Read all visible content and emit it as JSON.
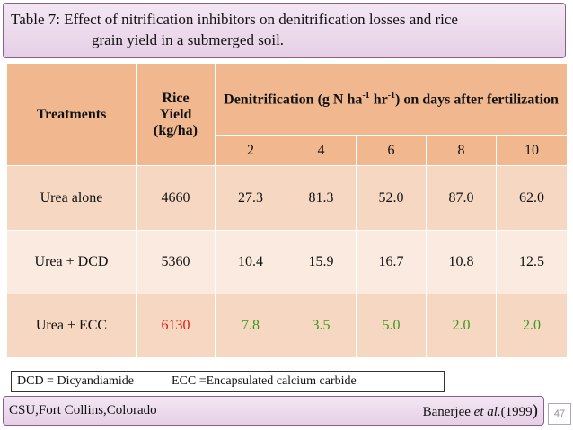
{
  "title": {
    "line1": "Table 7:  Effect of nitrification inhibitors on denitrification losses and rice",
    "line2": "grain yield in a submerged soil."
  },
  "table": {
    "col_treatments": "Treatments",
    "col_yield_line1": "Rice",
    "col_yield_line2": "Yield",
    "col_yield_line3": "(kg/ha)",
    "denit_header_pre": "Denitrification (g N ha",
    "denit_sup1": "-1",
    "denit_mid": " hr",
    "denit_sup2": "-1",
    "denit_post": ") on days after fertilization",
    "days": [
      "2",
      "4",
      "6",
      "8",
      "10"
    ],
    "rows": [
      {
        "treatment": "Urea alone",
        "yield": "4660",
        "values": [
          "27.3",
          "81.3",
          "52.0",
          "87.0",
          "62.0"
        ]
      },
      {
        "treatment": "Urea + DCD",
        "yield": "5360",
        "values": [
          "10.4",
          "15.9",
          "16.7",
          "10.8",
          "12.5"
        ]
      },
      {
        "treatment": "Urea + ECC",
        "yield": "6130",
        "values": [
          "7.8",
          "3.5",
          "5.0",
          "2.0",
          "2.0"
        ]
      }
    ]
  },
  "note": {
    "dcd": "DCD = Dicyandiamide",
    "ecc": "ECC =Encapsulated calcium carbide"
  },
  "footer": {
    "left": "CSU,Fort Collins,Colorado",
    "ref_author": "Banerjee ",
    "ref_etal": "et al.",
    "ref_year": "(1999",
    "ref_close": ")"
  },
  "page_number": "47",
  "colors": {
    "header_bg": "#f1b890",
    "row_bg": "#f6d7c2",
    "row_alt_bg": "#fbeadf",
    "highlight_yield": "#e8130c",
    "highlight_values": "#3a9a1a"
  }
}
